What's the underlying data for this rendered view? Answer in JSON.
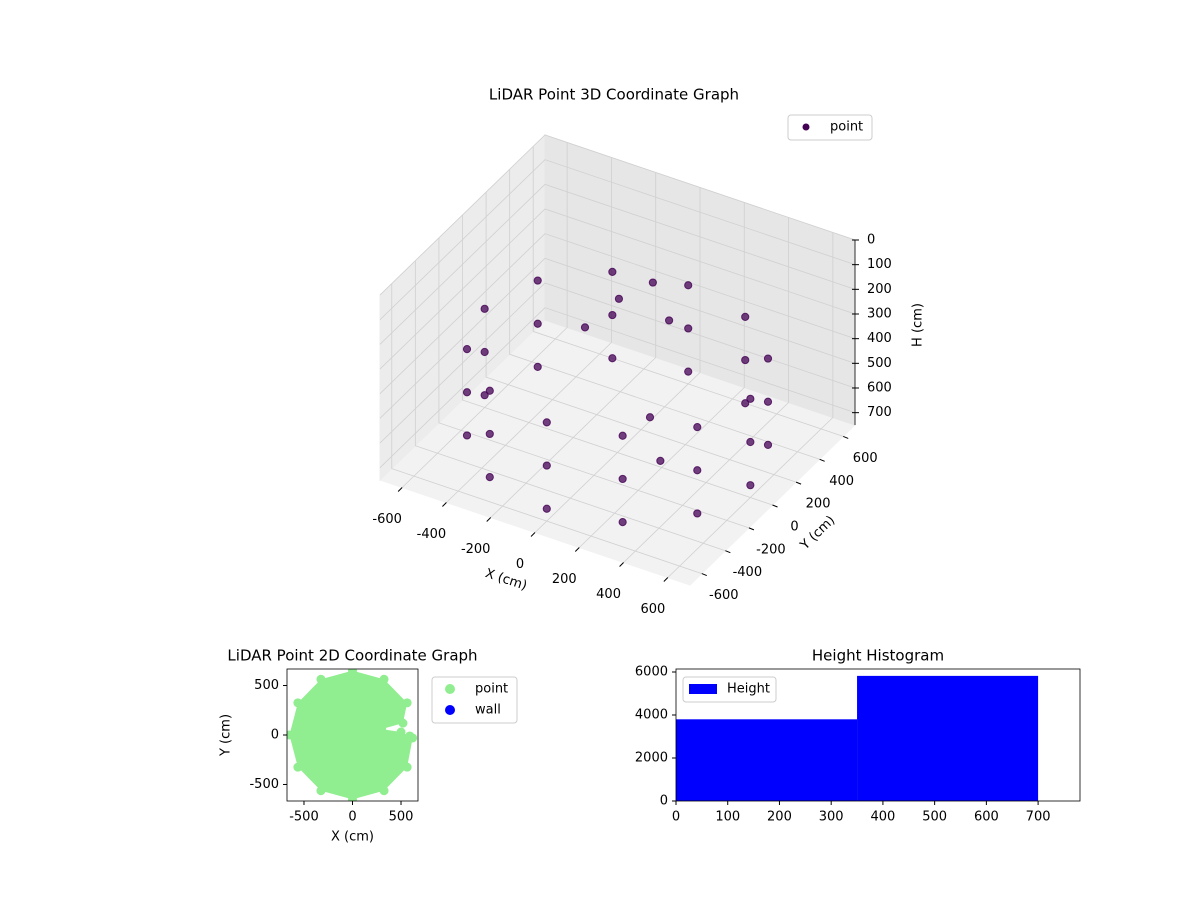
{
  "chart_data": [
    {
      "type": "scatter3d",
      "title": "LiDAR Point 3D Coordinate Graph",
      "xlabel": "X (cm)",
      "ylabel": "Y (cm)",
      "zlabel": "H (cm)",
      "xlim": [
        -700,
        700
      ],
      "ylim": [
        -700,
        700
      ],
      "zlim": [
        750,
        0
      ],
      "xticks": [
        -600,
        -400,
        -200,
        0,
        200,
        400,
        600
      ],
      "yticks": [
        -600,
        -400,
        -200,
        0,
        200,
        400,
        600
      ],
      "zticks": [
        0,
        100,
        200,
        300,
        400,
        500,
        600,
        700
      ],
      "grid": true,
      "legend": "upper right",
      "series": [
        {
          "name": "point",
          "color": "#440154",
          "x": [
            600,
            520,
            300,
            0,
            -300,
            -520,
            -600,
            -520,
            -300,
            0,
            300,
            520,
            600,
            520,
            300,
            0,
            -300,
            -520,
            -600,
            -520,
            -300,
            0,
            300,
            520,
            600,
            520,
            300,
            0,
            -300,
            -520,
            -600,
            -520,
            -300,
            0,
            300,
            520,
            -100,
            0,
            100,
            -200,
            200,
            300
          ],
          "y": [
            0,
            300,
            520,
            600,
            520,
            300,
            0,
            -300,
            -520,
            -600,
            -520,
            -300,
            0,
            300,
            520,
            600,
            520,
            300,
            0,
            -300,
            -520,
            -600,
            -520,
            -300,
            0,
            300,
            520,
            600,
            520,
            300,
            0,
            -300,
            -520,
            -600,
            -520,
            -300,
            200,
            300,
            250,
            100,
            -100,
            -200
          ],
          "z": [
            350,
            350,
            350,
            350,
            350,
            350,
            350,
            350,
            350,
            350,
            350,
            350,
            525,
            525,
            525,
            525,
            525,
            525,
            525,
            525,
            525,
            525,
            525,
            525,
            700,
            700,
            700,
            700,
            700,
            700,
            700,
            700,
            700,
            700,
            700,
            700,
            250,
            200,
            300,
            350,
            500,
            600
          ]
        }
      ]
    },
    {
      "type": "scatter",
      "title": "LiDAR Point 2D Coordinate Graph",
      "xlabel": "X (cm)",
      "ylabel": "Y (cm)",
      "xlim": [
        -675,
        675
      ],
      "ylim": [
        -667,
        667
      ],
      "xticks": [
        -500,
        0,
        500
      ],
      "yticks": [
        -500,
        0,
        500
      ],
      "legend": "outside right",
      "series": [
        {
          "name": "point",
          "color": "#90ee90",
          "x": [
            620,
            590,
            500,
            300,
            520,
            563,
            325,
            0,
            -325,
            -563,
            -650,
            -563,
            -325,
            0,
            325,
            563
          ],
          "y": [
            -30,
            -10,
            30,
            60,
            120,
            325,
            563,
            650,
            563,
            325,
            0,
            -325,
            -563,
            -650,
            -563,
            -325
          ]
        },
        {
          "name": "wall",
          "color": "#0000ff",
          "x": [],
          "y": []
        }
      ]
    },
    {
      "type": "histogram",
      "title": "Height Histogram",
      "bins": [
        0,
        350,
        700
      ],
      "values": [
        3800,
        5820
      ],
      "color": "#0000ff",
      "series_name": "Height",
      "xlim": [
        0,
        781
      ],
      "ylim": [
        0,
        6140
      ],
      "xticks": [
        0,
        100,
        200,
        300,
        400,
        500,
        600,
        700
      ],
      "yticks": [
        0,
        2000,
        4000,
        6000
      ],
      "legend": "upper left"
    }
  ]
}
